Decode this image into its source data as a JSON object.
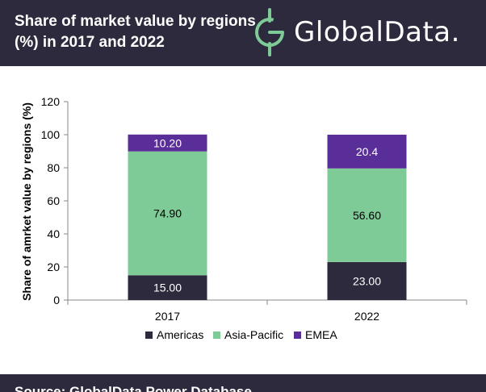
{
  "header": {
    "title": "Share of market value by regions (%) in 2017 and 2022",
    "logo_text": "GlobalData."
  },
  "footer": {
    "source": "Source: GlobalData Power Database"
  },
  "colors": {
    "header_bg": "#2d2a3e",
    "Americas": "#2d2a3e",
    "Asia-Pacific": "#7fcb98",
    "EMEA": "#5a2e98"
  },
  "chart_data": {
    "type": "bar",
    "stacked": true,
    "categories": [
      "2017",
      "2022"
    ],
    "series": [
      {
        "name": "Americas",
        "values": [
          15.0,
          23.0
        ],
        "labels": [
          "15.00",
          "23.00"
        ]
      },
      {
        "name": "Asia-Pacific",
        "values": [
          74.9,
          56.6
        ],
        "labels": [
          "74.90",
          "56.60"
        ]
      },
      {
        "name": "EMEA",
        "values": [
          10.2,
          20.4
        ],
        "labels": [
          "10.20",
          "20.4"
        ]
      }
    ],
    "title": "",
    "xlabel": "",
    "ylabel": "Share of amrket value by regions (%)",
    "ylim": [
      0,
      120
    ],
    "yticks": [
      "0",
      "20",
      "40",
      "60",
      "80",
      "100",
      "120"
    ],
    "grid": false,
    "legend": "bottom"
  }
}
